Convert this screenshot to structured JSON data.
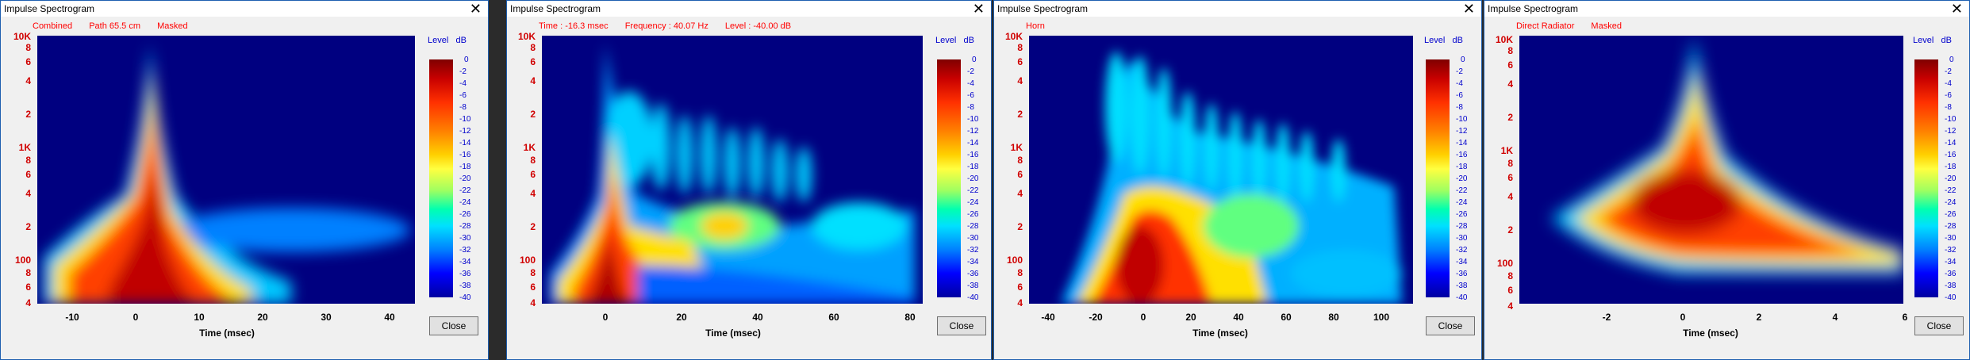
{
  "windows": [
    {
      "title": "Impulse Spectrogram",
      "status": [
        "Combined",
        "Path 65.5 cm",
        "Masked"
      ],
      "x_ticks": [
        "-10",
        "0",
        "10",
        "20",
        "30",
        "40"
      ],
      "xlabel": "Time (msec)",
      "close_label": "Close"
    },
    {
      "title": "Impulse Spectrogram",
      "status": [
        "Time : -16.3 msec",
        "Frequency : 40.07 Hz",
        "Level : -40.00 dB"
      ],
      "x_ticks": [
        "0",
        "20",
        "40",
        "60",
        "80"
      ],
      "xlabel": "Time (msec)",
      "close_label": "Close"
    },
    {
      "title": "Impulse Spectrogram",
      "status": [
        "Horn"
      ],
      "x_ticks": [
        "-40",
        "-20",
        "0",
        "20",
        "40",
        "60",
        "80",
        "100"
      ],
      "xlabel": "Time (msec)",
      "close_label": "Close"
    },
    {
      "title": "Impulse Spectrogram",
      "status": [
        "Direct Radiator",
        "Masked"
      ],
      "x_ticks": [
        "-2",
        "0",
        "2",
        "4",
        "6"
      ],
      "xlabel": "Time (msec)",
      "close_label": "Close"
    }
  ],
  "y_ticks": [
    "10K",
    "8",
    "6",
    "4",
    "2",
    "1K",
    "8",
    "6",
    "4",
    "2",
    "100",
    "8",
    "6",
    "4"
  ],
  "colorbar": {
    "title": "Level",
    "unit": "dB",
    "labels": [
      "0",
      "-2",
      "-4",
      "-6",
      "-8",
      "-10",
      "-12",
      "-14",
      "-16",
      "-18",
      "-20",
      "-22",
      "-24",
      "-26",
      "-28",
      "-30",
      "-32",
      "-34",
      "-36",
      "-38",
      "-40"
    ]
  },
  "icons": {
    "close": "close-icon"
  }
}
